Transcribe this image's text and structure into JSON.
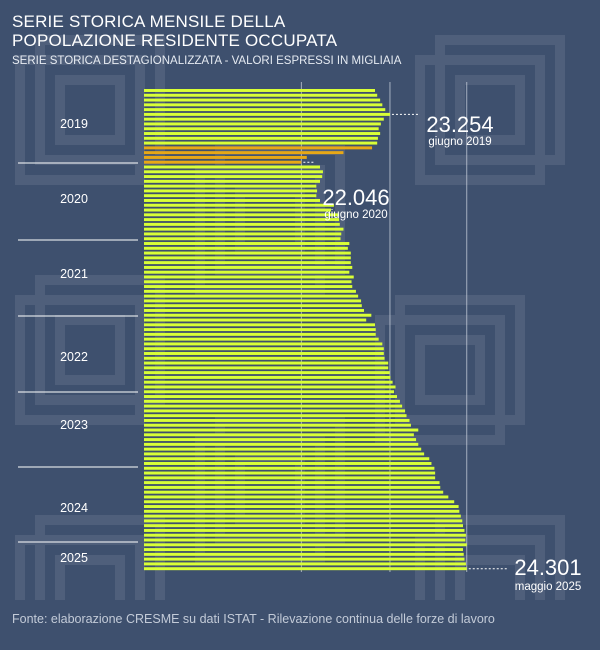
{
  "title": {
    "line1": "SERIE STORICA MENSILE DELLA",
    "line2": "POPOLAZIONE RESIDENTE OCCUPATA"
  },
  "subtitle": "SERIE STORICA DESTAGIONALIZZATA - VALORI ESPRESSI IN MIGLIAIA",
  "footer": "Fonte: elaborazione CRESME su dati ISTAT - Rilevazione continua delle forze di lavoro",
  "colors": {
    "background": "#3e506e",
    "bar": "#d9ff36",
    "bar_highlight": "#e8a816",
    "text": "#ffffff",
    "guides": "#c8cfdb"
  },
  "chart_data": {
    "type": "bar",
    "orientation": "horizontal",
    "unit": "migliaia",
    "year_labels": [
      "2019",
      "2020",
      "2021",
      "2022",
      "2023",
      "2024",
      "2025"
    ],
    "series": [
      {
        "values": [
          23050,
          23080,
          23120,
          23150,
          23190,
          23254,
          23170,
          23130,
          23100,
          23120,
          23090,
          23080,
          23010,
          22620,
          22120,
          22046,
          22300,
          22340,
          22330,
          22300,
          22250,
          22260,
          22250,
          22300,
          22490,
          22450,
          22560,
          22560,
          22570,
          22620,
          22590,
          22580,
          22700,
          22680,
          22720,
          22720,
          22720,
          22740,
          22700,
          22760,
          22730,
          22740,
          22790,
          22820,
          22860,
          22870,
          22900,
          23000,
          22930,
          23050,
          23060,
          23060,
          23100,
          23150,
          23170,
          23170,
          23180,
          23230,
          23230,
          23250,
          23260,
          23290,
          23330,
          23310,
          23350,
          23390,
          23420,
          23460,
          23480,
          23520,
          23540,
          23640,
          23580,
          23610,
          23640,
          23680,
          23720,
          23790,
          23820,
          23860,
          23870,
          23870,
          23930,
          23940,
          23980,
          24050,
          24130,
          24190,
          24200,
          24220,
          24240,
          24250,
          24270,
          24290,
          24282,
          24301,
          24250,
          24260,
          24270,
          24290,
          24301
        ],
        "highlight": [
          12,
          13,
          14,
          15
        ]
      }
    ],
    "annotations": [
      {
        "value": "23.254",
        "label": "giugno 2019",
        "index": 5
      },
      {
        "value": "22.046",
        "label": "giugno 2020",
        "index": 15
      },
      {
        "value": "24.301",
        "label": "maggio 2025",
        "index": 100
      }
    ],
    "guides": [
      22046,
      23254,
      24301
    ],
    "xlim": [
      19900,
      24800
    ],
    "grid": false,
    "legend": "none"
  }
}
